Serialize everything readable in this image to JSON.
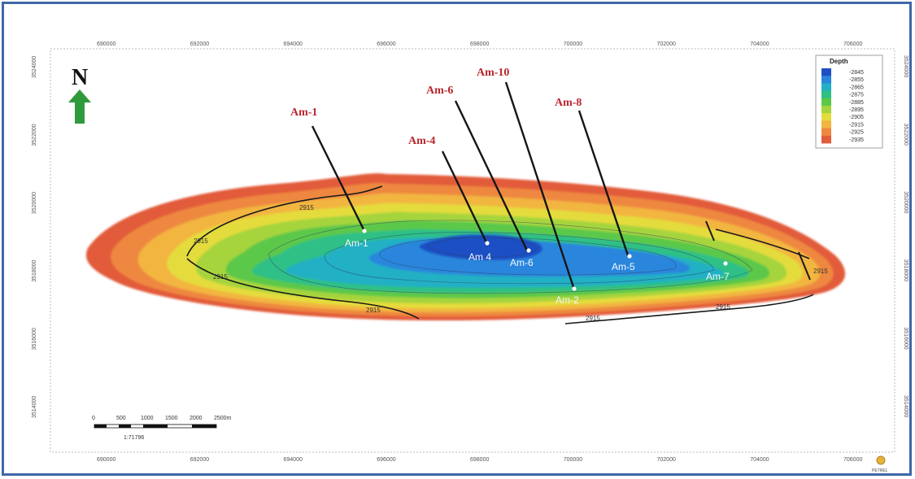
{
  "map": {
    "north_label": "N",
    "x_ticks": [
      "690000",
      "692000",
      "694000",
      "696000",
      "698000",
      "700000",
      "702000",
      "704000",
      "706000"
    ],
    "y_ticks": [
      "3524000",
      "3522000",
      "3520000",
      "3518000",
      "3516000",
      "3514000"
    ],
    "contour_label": "2915",
    "legend": {
      "title": "Depth",
      "values": [
        "-2845",
        "-2855",
        "-2865",
        "-2875",
        "-2885",
        "-2895",
        "-2905",
        "-2915",
        "-2925",
        "-2935"
      ],
      "colors": [
        "#1e4fc4",
        "#2a86dc",
        "#22b0c4",
        "#2fc086",
        "#5cc848",
        "#a6d43c",
        "#e4dc3c",
        "#f2b640",
        "#ee8840",
        "#e25c3a"
      ]
    },
    "wells": [
      {
        "name": "Am-1"
      },
      {
        "name": "Am 4"
      },
      {
        "name": "Am-6"
      },
      {
        "name": "Am-2"
      },
      {
        "name": "Am-5"
      },
      {
        "name": "Am-7"
      }
    ],
    "well_titles": [
      "Am-1",
      "Am-4",
      "Am-6",
      "Am-10",
      "Am-8"
    ],
    "scale_bar": {
      "labels": [
        "0",
        "500",
        "1000",
        "1500",
        "2000",
        "2500m"
      ],
      "ratio": "1:71796"
    },
    "logo_text": "PETREL"
  }
}
